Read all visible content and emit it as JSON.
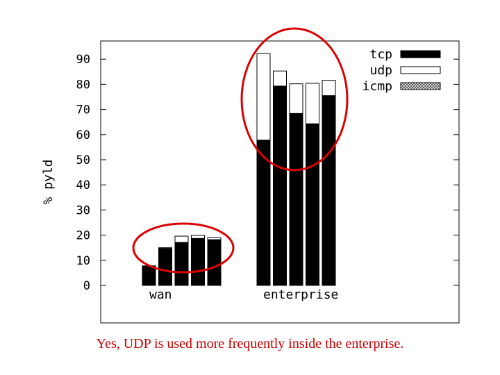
{
  "chart_data": {
    "type": "bar",
    "stacked": true,
    "ylabel": "% pyld",
    "ylim": [
      0,
      90
    ],
    "yticks": [
      0,
      10,
      20,
      30,
      40,
      50,
      60,
      70,
      80,
      90
    ],
    "groups": [
      {
        "label": "wan",
        "tcp": [
          7.8,
          14.7,
          17.1,
          18.7,
          18.2
        ],
        "udp": [
          0,
          0.3,
          2.5,
          1.2,
          0.8
        ],
        "icmp": [
          0,
          0,
          0,
          0,
          0
        ]
      },
      {
        "label": "enterprise",
        "tcp": [
          57.8,
          79.3,
          68.4,
          64.3,
          75.5
        ],
        "udp": [
          34.4,
          6.0,
          11.8,
          16.1,
          6.1
        ],
        "icmp": [
          0,
          0,
          0,
          0,
          0
        ]
      }
    ],
    "series": [
      {
        "name": "tcp",
        "fill": "#000000"
      },
      {
        "name": "udp",
        "fill": "#ffffff"
      },
      {
        "name": "icmp",
        "fill": "hatched"
      }
    ],
    "legend_position": "top-right",
    "highlight_color": "#dd0000"
  },
  "caption": "Yes, UDP is used more frequently inside the enterprise."
}
